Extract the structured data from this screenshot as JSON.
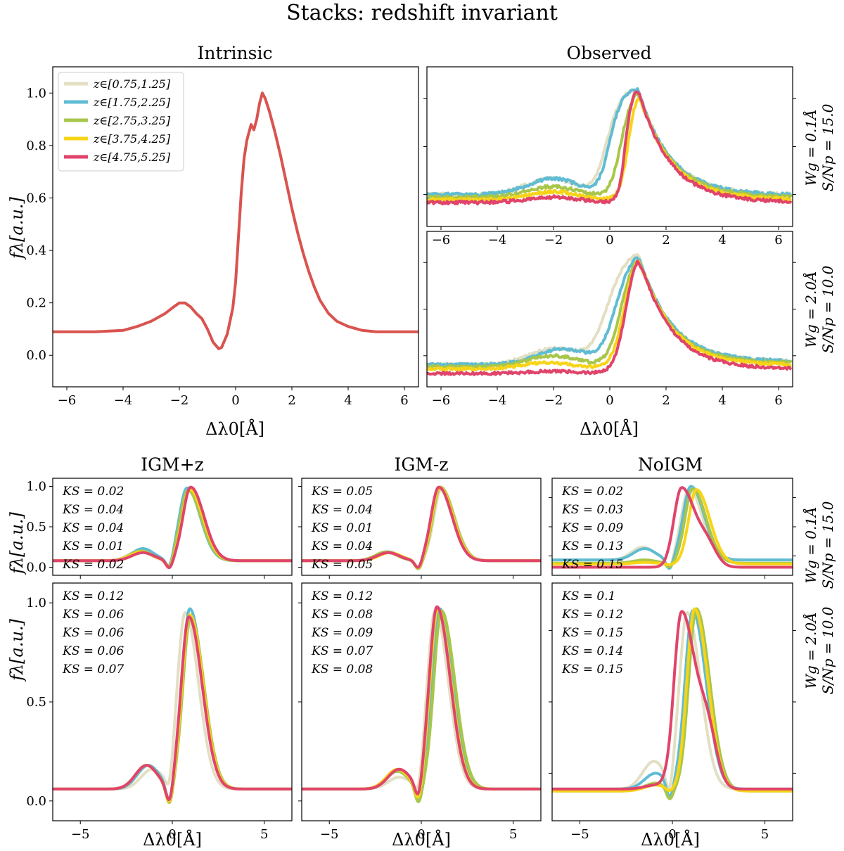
{
  "figure": {
    "title": "Stacks: redshift invariant",
    "colors": {
      "z1": "#e3dfc3",
      "z2": "#5fbcd3",
      "z3": "#a8c64a",
      "z4": "#f7d418",
      "z5": "#e0446a"
    }
  },
  "text": {
    "intrinsic_title": "Intrinsic",
    "observed_title": "Observed",
    "igm_plus_title": "IGM+z",
    "igm_minus_title": "IGM-z",
    "noigm_title": "NoIGM",
    "ylabel": "fλ[a.u.]",
    "xlabel": "Δλ0[Å]",
    "row1_wg": "Wg = 0.1Å",
    "row1_sn": "S/Np = 15.0",
    "row2_wg": "Wg = 2.0Å",
    "row2_sn": "S/Np = 10.0"
  },
  "chart_data": [
    {
      "id": "intrinsic",
      "type": "line",
      "title": "Intrinsic",
      "xlabel": "Δλ0[Å]",
      "ylabel": "fλ[a.u.]",
      "xlim": [
        -6.5,
        6.5
      ],
      "ylim": [
        -0.12,
        1.1
      ],
      "xticks": [
        -6,
        -4,
        -2,
        0,
        2,
        4,
        6
      ],
      "yticks": [
        0.0,
        0.2,
        0.4,
        0.6,
        0.8,
        1.0
      ],
      "legend": {
        "position": "top-left",
        "entries": [
          "z∈[0.75,1.25]",
          "z∈[1.75,2.25]",
          "z∈[2.75,3.25]",
          "z∈[3.75,4.25]",
          "z∈[4.75,5.25]"
        ]
      },
      "series": [
        {
          "color": "#d9534f",
          "x": [
            -6.5,
            -5.0,
            -4.0,
            -3.5,
            -3.0,
            -2.5,
            -2.2,
            -2.0,
            -1.8,
            -1.6,
            -1.4,
            -1.2,
            -1.0,
            -0.8,
            -0.6,
            -0.5,
            -0.3,
            -0.1,
            0.0,
            0.1,
            0.2,
            0.3,
            0.4,
            0.5,
            0.55,
            0.65,
            0.75,
            0.85,
            0.95,
            1.05,
            1.2,
            1.4,
            1.6,
            1.8,
            2.0,
            2.2,
            2.4,
            2.6,
            2.8,
            3.0,
            3.3,
            3.6,
            4.0,
            4.5,
            5.0,
            6.0,
            6.5
          ],
          "y": [
            0.09,
            0.09,
            0.095,
            0.11,
            0.13,
            0.16,
            0.185,
            0.2,
            0.2,
            0.185,
            0.16,
            0.14,
            0.1,
            0.05,
            0.025,
            0.03,
            0.08,
            0.18,
            0.28,
            0.45,
            0.62,
            0.75,
            0.82,
            0.86,
            0.88,
            0.86,
            0.9,
            0.96,
            1.0,
            0.98,
            0.93,
            0.85,
            0.76,
            0.66,
            0.56,
            0.47,
            0.39,
            0.32,
            0.26,
            0.21,
            0.16,
            0.13,
            0.11,
            0.095,
            0.09,
            0.09,
            0.09
          ]
        }
      ]
    },
    {
      "id": "observed-top",
      "type": "line",
      "title": "Observed",
      "xlim": [
        -6.5,
        6.5
      ],
      "ylim": [
        0.5,
        1.1
      ],
      "xticks": [
        -6,
        -4,
        -2,
        0,
        2,
        4,
        6
      ],
      "right_label": [
        "Wg = 0.1Å",
        "S/Np = 15.0"
      ],
      "series": [
        {
          "name": "z∈[0.75,1.25]",
          "color": "#e3dfc3",
          "base": 0.62,
          "bump": 0.06,
          "bump_x": -2.1,
          "edge": -0.4,
          "edge_w": 0.25
        },
        {
          "name": "z∈[1.75,2.25]",
          "color": "#5fbcd3",
          "base": 0.62,
          "bump": 0.06,
          "bump_x": -2.0,
          "edge": -0.3,
          "edge_w": 0.22
        },
        {
          "name": "z∈[2.75,3.25]",
          "color": "#a8c64a",
          "base": 0.61,
          "bump": 0.04,
          "bump_x": -2.0,
          "edge": 0.1,
          "edge_w": 0.2
        },
        {
          "name": "z∈[3.75,4.25]",
          "color": "#f7d418",
          "base": 0.6,
          "bump": 0.03,
          "bump_x": -2.0,
          "edge": 0.35,
          "edge_w": 0.15
        },
        {
          "name": "z∈[4.75,5.25]",
          "color": "#e0446a",
          "base": 0.59,
          "bump": 0.02,
          "bump_x": -2.0,
          "edge": 0.25,
          "edge_w": 0.12
        }
      ]
    },
    {
      "id": "observed-bottom",
      "type": "line",
      "xlabel": "Δλ0[Å]",
      "xlim": [
        -6.5,
        6.5
      ],
      "ylim": [
        0.4,
        1.1
      ],
      "xticks": [
        -6,
        -4,
        -2,
        0,
        2,
        4,
        6
      ],
      "right_label": [
        "Wg = 2.0Å",
        "S/Np = 10.0"
      ],
      "series": [
        {
          "name": "z∈[0.75,1.25]",
          "color": "#e3dfc3",
          "base": 0.5,
          "bump": 0.07,
          "bump_x": -2.0,
          "edge": -0.4,
          "edge_w": 0.35
        },
        {
          "name": "z∈[1.75,2.25]",
          "color": "#5fbcd3",
          "base": 0.5,
          "bump": 0.07,
          "bump_x": -1.7,
          "edge": -0.1,
          "edge_w": 0.3
        },
        {
          "name": "z∈[2.75,3.25]",
          "color": "#a8c64a",
          "base": 0.49,
          "bump": 0.05,
          "bump_x": -2.0,
          "edge": 0.1,
          "edge_w": 0.25
        },
        {
          "name": "z∈[3.75,4.25]",
          "color": "#f7d418",
          "base": 0.48,
          "bump": 0.03,
          "bump_x": -2.2,
          "edge": 0.2,
          "edge_w": 0.22
        },
        {
          "name": "z∈[4.75,5.25]",
          "color": "#e0446a",
          "base": 0.46,
          "bump": 0.01,
          "bump_x": -2.0,
          "edge": 0.25,
          "edge_w": 0.2
        }
      ]
    },
    {
      "id": "igm-plus-top",
      "type": "line",
      "title": "IGM+z",
      "ylabel": "fλ[a.u.]",
      "xlim": [
        -6.5,
        6.5
      ],
      "ylim": [
        -0.1,
        1.1
      ],
      "yticks": [
        0.0,
        0.5,
        1.0
      ],
      "annotations": [
        "KS = 0.02",
        "KS = 0.04",
        "KS = 0.04",
        "KS = 0.01",
        "KS = 0.02"
      ],
      "series": [
        {
          "name": "z∈[0.75,1.25]",
          "color": "#e3dfc3",
          "base": 0.08,
          "bump": 0.12,
          "bump_x": -1.8,
          "peak": 0.97,
          "peak_x": 0.9
        },
        {
          "name": "z∈[1.75,2.25]",
          "color": "#5fbcd3",
          "base": 0.08,
          "bump": 0.15,
          "bump_x": -1.6,
          "peak": 0.98,
          "peak_x": 0.8
        },
        {
          "name": "z∈[2.75,3.25]",
          "color": "#a8c64a",
          "base": 0.08,
          "bump": 0.12,
          "bump_x": -1.7,
          "peak": 0.95,
          "peak_x": 0.85
        },
        {
          "name": "z∈[3.75,4.25]",
          "color": "#f7d418",
          "base": 0.08,
          "bump": 0.11,
          "bump_x": -1.7,
          "peak": 0.96,
          "peak_x": 0.95
        },
        {
          "name": "z∈[4.75,5.25]",
          "color": "#e0446a",
          "base": 0.08,
          "bump": 0.1,
          "bump_x": -1.6,
          "peak": 0.99,
          "peak_x": 1.0
        }
      ]
    },
    {
      "id": "igm-minus-top",
      "type": "line",
      "title": "IGM-z",
      "xlim": [
        -6.5,
        6.5
      ],
      "ylim": [
        -0.1,
        1.1
      ],
      "annotations": [
        "KS = 0.05",
        "KS = 0.04",
        "KS = 0.01",
        "KS = 0.04",
        "KS = 0.05"
      ],
      "series": [
        {
          "name": "z∈[0.75,1.25]",
          "color": "#e3dfc3",
          "base": 0.08,
          "bump": 0.1,
          "bump_x": -1.9,
          "peak": 0.97,
          "peak_x": 1.1
        },
        {
          "name": "z∈[1.75,2.25]",
          "color": "#5fbcd3",
          "base": 0.08,
          "bump": 0.11,
          "bump_x": -1.8,
          "peak": 0.98,
          "peak_x": 1.0
        },
        {
          "name": "z∈[2.75,3.25]",
          "color": "#a8c64a",
          "base": 0.08,
          "bump": 0.11,
          "bump_x": -1.9,
          "peak": 0.99,
          "peak_x": 1.05
        },
        {
          "name": "z∈[3.75,4.25]",
          "color": "#f7d418",
          "base": 0.08,
          "bump": 0.1,
          "bump_x": -1.7,
          "peak": 0.99,
          "peak_x": 1.0
        },
        {
          "name": "z∈[4.75,5.25]",
          "color": "#e0446a",
          "base": 0.08,
          "bump": 0.1,
          "bump_x": -1.8,
          "peak": 0.99,
          "peak_x": 0.95
        }
      ]
    },
    {
      "id": "noigm-top",
      "type": "line",
      "title": "NoIGM",
      "xlim": [
        -6.5,
        6.5
      ],
      "ylim": [
        -0.1,
        1.1
      ],
      "right_label": [
        "Wg = 0.1Å",
        "S/Np = 15.0"
      ],
      "annotations": [
        "KS = 0.02",
        "KS = 0.03",
        "KS = 0.09",
        "KS = 0.13",
        "KS = 0.15"
      ],
      "series": [
        {
          "name": "z∈[0.75,1.25]",
          "color": "#e3dfc3",
          "base": 0.09,
          "bump": 0.16,
          "bump_x": -1.6,
          "peak": 0.97,
          "peak_x": 0.9
        },
        {
          "name": "z∈[1.75,2.25]",
          "color": "#5fbcd3",
          "base": 0.09,
          "bump": 0.14,
          "bump_x": -1.5,
          "peak": 1.0,
          "peak_x": 1.0
        },
        {
          "name": "z∈[2.75,3.25]",
          "color": "#a8c64a",
          "base": 0.05,
          "bump": 0.04,
          "bump_x": -1.5,
          "peak": 0.97,
          "peak_x": 1.1
        },
        {
          "name": "z∈[3.75,4.25]",
          "color": "#f7d418",
          "base": 0.04,
          "bump": 0.02,
          "bump_x": -1.5,
          "peak": 0.96,
          "peak_x": 1.3
        },
        {
          "name": "z∈[4.75,5.25]",
          "color": "#e0446a",
          "base": 0.0,
          "bump": 0.0,
          "bump_x": -1.5,
          "peak": 0.98,
          "peak_x": 0.5,
          "shoulder": 0.55,
          "shoulder_x": 1.9
        }
      ]
    },
    {
      "id": "igm-plus-bottom",
      "type": "line",
      "ylabel": "fλ[a.u.]",
      "xlabel": "Δλ0[Å]",
      "xlim": [
        -6.5,
        6.5
      ],
      "ylim": [
        -0.1,
        1.1
      ],
      "xticks": [
        -5,
        0,
        5
      ],
      "yticks": [
        0.0,
        0.5,
        1.0
      ],
      "annotations": [
        "KS = 0.12",
        "KS = 0.06",
        "KS = 0.06",
        "KS = 0.06",
        "KS = 0.07"
      ],
      "series": [
        {
          "name": "z∈[0.75,1.25]",
          "color": "#e3dfc3",
          "base": 0.06,
          "bump": 0.1,
          "bump_x": -1.1,
          "peak": 0.95,
          "peak_x": 0.7
        },
        {
          "name": "z∈[1.75,2.25]",
          "color": "#5fbcd3",
          "base": 0.06,
          "bump": 0.12,
          "bump_x": -1.3,
          "peak": 0.97,
          "peak_x": 0.95
        },
        {
          "name": "z∈[2.75,3.25]",
          "color": "#a8c64a",
          "base": 0.06,
          "bump": 0.12,
          "bump_x": -1.4,
          "peak": 0.93,
          "peak_x": 1.0
        },
        {
          "name": "z∈[3.75,4.25]",
          "color": "#f7d418",
          "base": 0.06,
          "bump": 0.12,
          "bump_x": -1.4,
          "peak": 0.94,
          "peak_x": 0.95
        },
        {
          "name": "z∈[4.75,5.25]",
          "color": "#e0446a",
          "base": 0.06,
          "bump": 0.12,
          "bump_x": -1.4,
          "peak": 0.93,
          "peak_x": 0.9
        }
      ]
    },
    {
      "id": "igm-minus-bottom",
      "type": "line",
      "xlabel": "Δλ0[Å]",
      "xlim": [
        -6.5,
        6.5
      ],
      "ylim": [
        -0.1,
        1.1
      ],
      "xticks": [
        -5,
        0,
        5
      ],
      "annotations": [
        "KS = 0.12",
        "KS = 0.08",
        "KS = 0.09",
        "KS = 0.07",
        "KS = 0.08"
      ],
      "series": [
        {
          "name": "z∈[0.75,1.25]",
          "color": "#e3dfc3",
          "base": 0.06,
          "bump": 0.06,
          "bump_x": -1.2,
          "peak": 0.96,
          "peak_x": 0.75
        },
        {
          "name": "z∈[1.75,2.25]",
          "color": "#5fbcd3",
          "base": 0.06,
          "bump": 0.09,
          "bump_x": -1.3,
          "peak": 0.97,
          "peak_x": 1.0
        },
        {
          "name": "z∈[2.75,3.25]",
          "color": "#a8c64a",
          "base": 0.06,
          "bump": 0.09,
          "bump_x": -1.3,
          "peak": 0.96,
          "peak_x": 1.1
        },
        {
          "name": "z∈[3.75,4.25]",
          "color": "#f7d418",
          "base": 0.06,
          "bump": 0.1,
          "bump_x": -1.3,
          "peak": 0.97,
          "peak_x": 0.9
        },
        {
          "name": "z∈[4.75,5.25]",
          "color": "#e0446a",
          "base": 0.06,
          "bump": 0.1,
          "bump_x": -1.2,
          "peak": 0.98,
          "peak_x": 0.85
        }
      ]
    },
    {
      "id": "noigm-bottom",
      "type": "line",
      "xlabel": "Δλ0[Å]",
      "xlim": [
        -6.5,
        6.5
      ],
      "ylim": [
        -0.1,
        1.1
      ],
      "xticks": [
        -5,
        0,
        5
      ],
      "right_label": [
        "Wg = 2.0Å",
        "S/Np = 10.0"
      ],
      "annotations": [
        "KS = 0.1",
        "KS = 0.12",
        "KS = 0.15",
        "KS = 0.14",
        "KS = 0.15"
      ],
      "series": [
        {
          "name": "z∈[0.75,1.25]",
          "color": "#e3dfc3",
          "base": 0.06,
          "bump": 0.14,
          "bump_x": -1.0,
          "peak": 0.95,
          "peak_x": 0.8
        },
        {
          "name": "z∈[1.75,2.25]",
          "color": "#5fbcd3",
          "base": 0.06,
          "bump": 0.08,
          "bump_x": -0.9,
          "peak": 0.96,
          "peak_x": 1.1
        },
        {
          "name": "z∈[2.75,3.25]",
          "color": "#a8c64a",
          "base": 0.05,
          "bump": 0.04,
          "bump_x": -0.9,
          "peak": 0.97,
          "peak_x": 1.3
        },
        {
          "name": "z∈[3.75,4.25]",
          "color": "#f7d418",
          "base": 0.05,
          "bump": 0.03,
          "bump_x": -0.9,
          "peak": 0.97,
          "peak_x": 1.2
        },
        {
          "name": "z∈[4.75,5.25]",
          "color": "#e0446a",
          "base": 0.06,
          "bump": 0.02,
          "bump_x": -0.9,
          "peak": 0.95,
          "peak_x": 0.5,
          "shoulder": 0.6,
          "shoulder_x": 1.9
        }
      ]
    }
  ]
}
